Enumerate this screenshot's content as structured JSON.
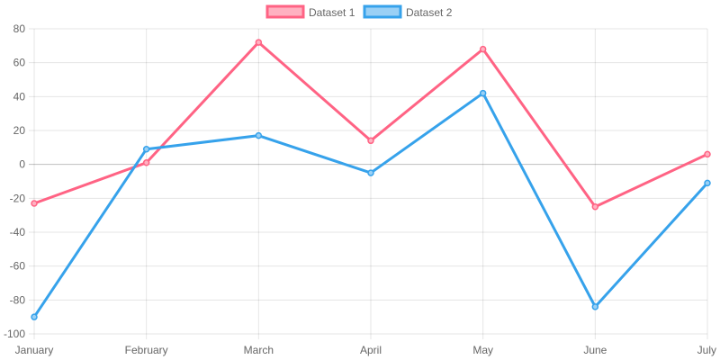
{
  "chart_data": {
    "type": "line",
    "title": "",
    "xlabel": "",
    "ylabel": "",
    "categories": [
      "January",
      "February",
      "March",
      "April",
      "May",
      "June",
      "July"
    ],
    "ylim": [
      -100,
      80
    ],
    "y_ticks": [
      "80",
      "60",
      "40",
      "20",
      "0",
      "-20",
      "-40",
      "-60",
      "-80",
      "-100"
    ],
    "grid": true,
    "legend_position": "top-center",
    "series": [
      {
        "name": "Dataset 1",
        "color": "#ff6384",
        "fill_color": "#ffb1c1",
        "values": [
          -23,
          1,
          72,
          14,
          68,
          -25,
          6
        ]
      },
      {
        "name": "Dataset 2",
        "color": "#36a2eb",
        "fill_color": "#9ad0f5",
        "values": [
          -90,
          9,
          17,
          -5,
          42,
          -84,
          -11
        ]
      }
    ]
  }
}
